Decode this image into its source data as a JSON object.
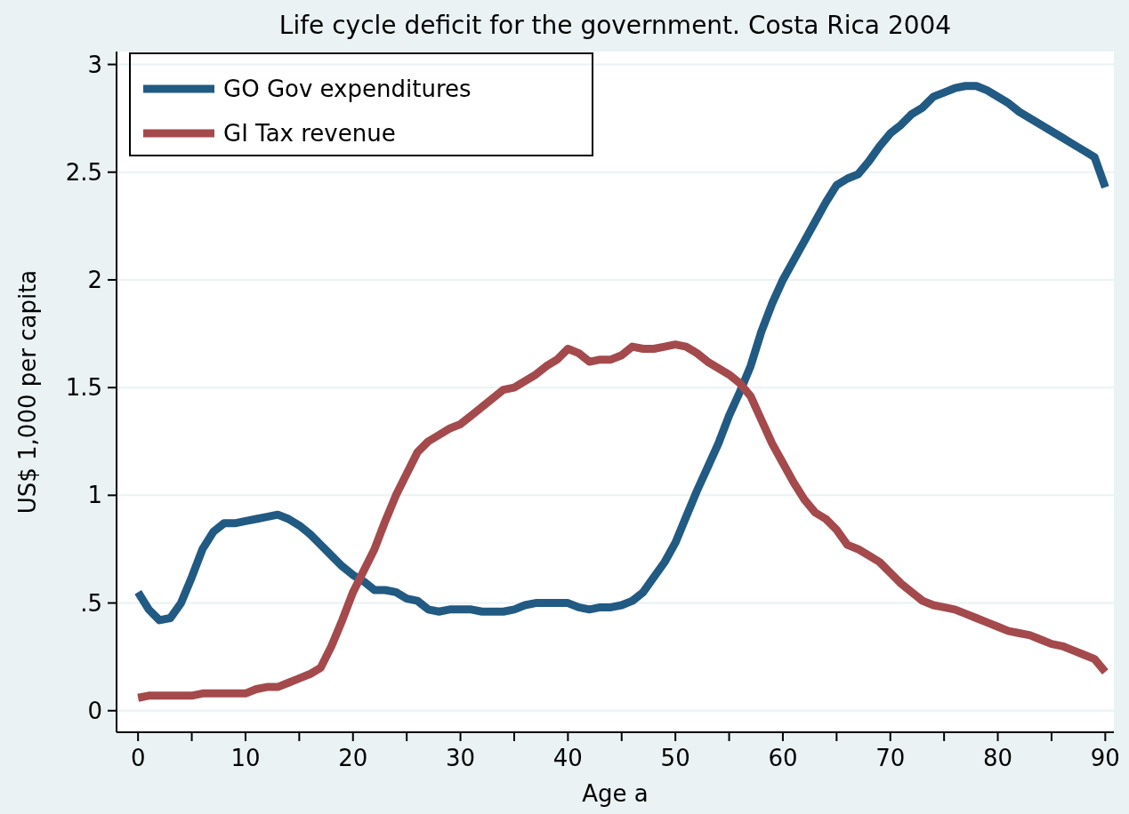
{
  "chart_data": {
    "type": "line",
    "title": "Life cycle deficit for the government. Costa Rica 2004",
    "xlabel": "Age a",
    "ylabel": "US$ 1,000 per capita",
    "x": [
      0,
      1,
      2,
      3,
      4,
      5,
      6,
      7,
      8,
      9,
      10,
      11,
      12,
      13,
      14,
      15,
      16,
      17,
      18,
      19,
      20,
      21,
      22,
      23,
      24,
      25,
      26,
      27,
      28,
      29,
      30,
      31,
      32,
      33,
      34,
      35,
      36,
      37,
      38,
      39,
      40,
      41,
      42,
      43,
      44,
      45,
      46,
      47,
      48,
      49,
      50,
      51,
      52,
      53,
      54,
      55,
      56,
      57,
      58,
      59,
      60,
      61,
      62,
      63,
      64,
      65,
      66,
      67,
      68,
      69,
      70,
      71,
      72,
      73,
      74,
      75,
      76,
      77,
      78,
      79,
      80,
      81,
      82,
      83,
      84,
      85,
      86,
      87,
      88,
      89,
      90
    ],
    "series": [
      {
        "name": "GO Gov expenditures",
        "color": "#215a83",
        "values": [
          0.55,
          0.47,
          0.42,
          0.43,
          0.5,
          0.62,
          0.75,
          0.83,
          0.87,
          0.87,
          0.88,
          0.89,
          0.9,
          0.91,
          0.89,
          0.86,
          0.82,
          0.77,
          0.72,
          0.67,
          0.63,
          0.6,
          0.56,
          0.56,
          0.55,
          0.52,
          0.51,
          0.47,
          0.46,
          0.47,
          0.47,
          0.47,
          0.46,
          0.46,
          0.46,
          0.47,
          0.49,
          0.5,
          0.5,
          0.5,
          0.5,
          0.48,
          0.47,
          0.48,
          0.48,
          0.49,
          0.51,
          0.55,
          0.62,
          0.69,
          0.78,
          0.9,
          1.02,
          1.13,
          1.24,
          1.37,
          1.48,
          1.6,
          1.76,
          1.89,
          2.0,
          2.09,
          2.18,
          2.27,
          2.36,
          2.44,
          2.47,
          2.49,
          2.55,
          2.62,
          2.68,
          2.72,
          2.77,
          2.8,
          2.85,
          2.87,
          2.89,
          2.9,
          2.9,
          2.88,
          2.85,
          2.82,
          2.78,
          2.75,
          2.72,
          2.69,
          2.66,
          2.63,
          2.6,
          2.57,
          2.43
        ]
      },
      {
        "name": "GI Tax revenue",
        "color": "#a44a4c",
        "values": [
          0.06,
          0.07,
          0.07,
          0.07,
          0.07,
          0.07,
          0.08,
          0.08,
          0.08,
          0.08,
          0.08,
          0.1,
          0.11,
          0.11,
          0.13,
          0.15,
          0.17,
          0.2,
          0.3,
          0.42,
          0.55,
          0.65,
          0.75,
          0.88,
          1.0,
          1.1,
          1.2,
          1.25,
          1.28,
          1.31,
          1.33,
          1.37,
          1.41,
          1.45,
          1.49,
          1.5,
          1.53,
          1.56,
          1.6,
          1.63,
          1.68,
          1.66,
          1.62,
          1.63,
          1.63,
          1.65,
          1.69,
          1.68,
          1.68,
          1.69,
          1.7,
          1.69,
          1.66,
          1.62,
          1.59,
          1.56,
          1.52,
          1.46,
          1.35,
          1.24,
          1.15,
          1.06,
          0.98,
          0.92,
          0.89,
          0.84,
          0.77,
          0.75,
          0.72,
          0.69,
          0.64,
          0.59,
          0.55,
          0.51,
          0.49,
          0.48,
          0.47,
          0.45,
          0.43,
          0.41,
          0.39,
          0.37,
          0.36,
          0.35,
          0.33,
          0.31,
          0.3,
          0.28,
          0.26,
          0.24,
          0.18
        ]
      }
    ],
    "xlim": [
      -2,
      90.8
    ],
    "ylim": [
      -0.1,
      3.06
    ],
    "xticks": [
      0,
      {
        "value": 5,
        "label": null
      },
      10,
      {
        "value": 15,
        "label": null
      },
      20,
      {
        "value": 25,
        "label": null
      },
      30,
      {
        "value": 35,
        "label": null
      },
      40,
      {
        "value": 45,
        "label": null
      },
      50,
      {
        "value": 55,
        "label": null
      },
      60,
      {
        "value": 65,
        "label": null
      },
      70,
      {
        "value": 75,
        "label": null
      },
      80,
      {
        "value": 85,
        "label": null
      },
      90
    ],
    "yticks": [
      0,
      {
        "value": 0.5,
        "label": ".5"
      },
      1,
      1.5,
      2,
      2.5,
      3
    ],
    "grid": "y",
    "legend": "top left",
    "line_style": "solid",
    "marker": "none"
  }
}
